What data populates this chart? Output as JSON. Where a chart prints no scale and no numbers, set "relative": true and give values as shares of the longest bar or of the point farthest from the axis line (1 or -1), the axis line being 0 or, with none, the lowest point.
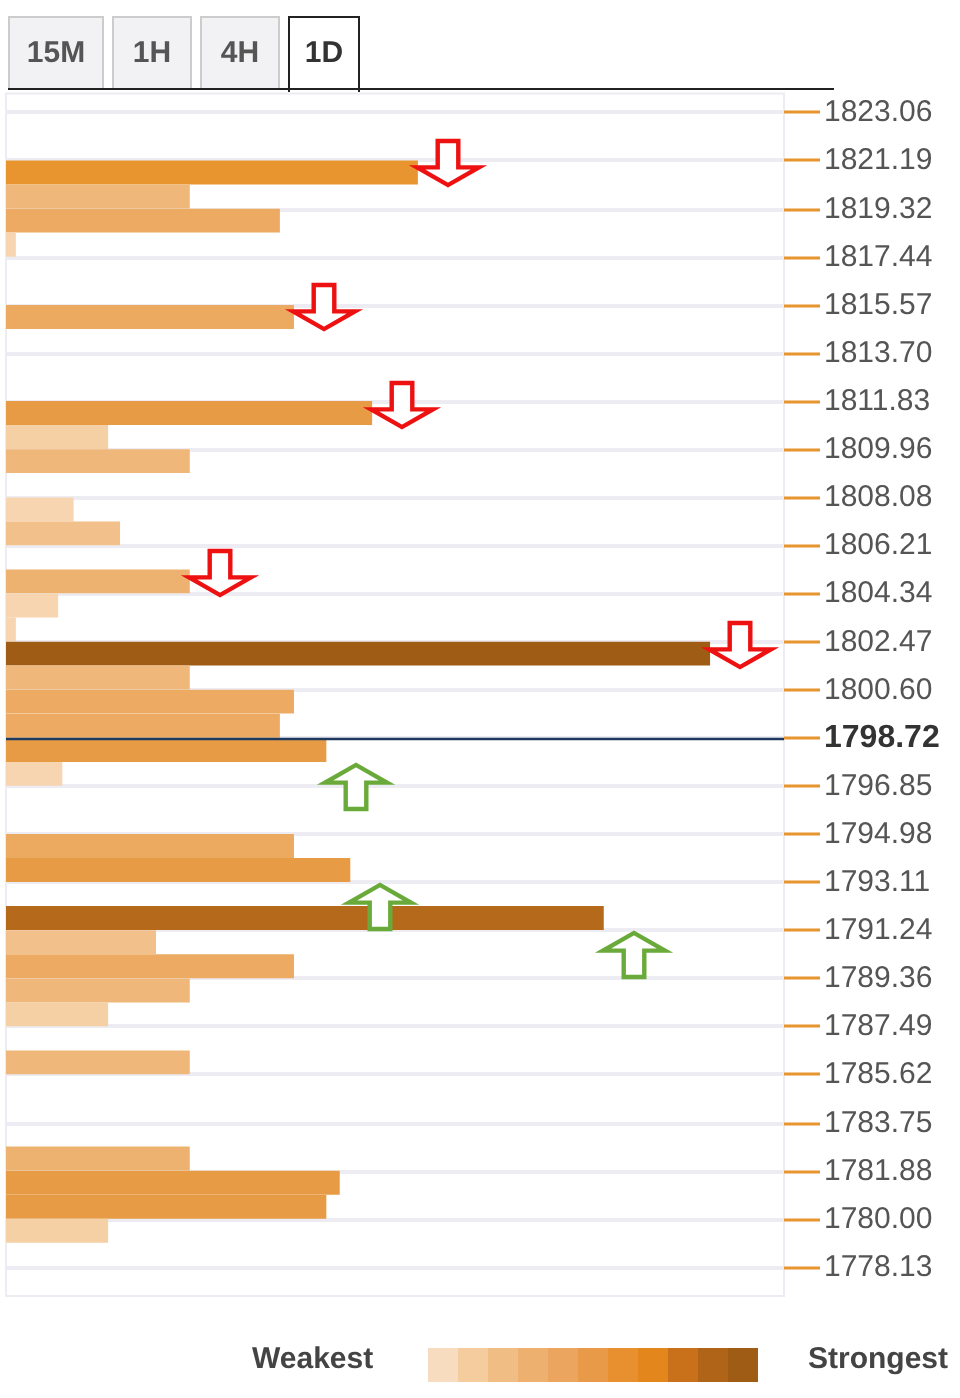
{
  "chart_data": {
    "type": "bar",
    "orientation": "horizontal",
    "relative": true,
    "x": [
      1820.72,
      1819.79,
      1818.85,
      1817.91,
      1815.1,
      1811.36,
      1810.43,
      1809.49,
      1807.61,
      1806.68,
      1804.81,
      1803.87,
      1802.94,
      1802.0,
      1801.07,
      1800.13,
      1799.19,
      1798.25,
      1797.32,
      1794.51,
      1793.58,
      1791.71,
      1790.77,
      1789.83,
      1788.89,
      1787.96,
      1786.09,
      1782.35,
      1781.41,
      1780.47,
      1779.54
    ],
    "values": [
      0.585,
      0.261,
      0.389,
      0.014,
      0.409,
      0.52,
      0.145,
      0.261,
      0.096,
      0.162,
      0.261,
      0.074,
      0.014,
      1,
      0.261,
      0.409,
      0.389,
      0.455,
      0.08,
      0.409,
      0.489,
      0.849,
      0.213,
      0.409,
      0.261,
      0.145,
      0.261,
      0.261,
      0.474,
      0.455,
      0.145
    ],
    "colors": [
      "#e8952f",
      "#efb779",
      "#edaa62",
      "#f6d5b0",
      "#ecaa60",
      "#e89b45",
      "#f5d0a5",
      "#efb779",
      "#f6d5b0",
      "#f2c08a",
      "#edb26f",
      "#f6d5b0",
      "#f6d5b0",
      "#9e5c14",
      "#efb779",
      "#edaa62",
      "#edaa62",
      "#e89b45",
      "#f6d5b0",
      "#ecaa60",
      "#e89b45",
      "#b5691a",
      "#f2c08a",
      "#edaa62",
      "#efb779",
      "#f5d0a5",
      "#efb779",
      "#edb26f",
      "#e89b45",
      "#e89b45",
      "#f5d0a5"
    ],
    "ylim": [
      1777.0,
      1823.8
    ],
    "yticks": [
      1823.06,
      1821.19,
      1819.32,
      1817.44,
      1815.57,
      {
        "value": 1813.7,
        "label": "1813.70"
      },
      1811.83,
      1809.96,
      1808.08,
      1806.21,
      1804.34,
      1802.47,
      {
        "value": 1800.6,
        "label": "1800.60"
      },
      1798.72,
      1796.85,
      1794.98,
      1793.11,
      1791.24,
      1789.36,
      1787.49,
      1785.62,
      1783.75,
      1781.88,
      {
        "value": 1780,
        "label": "1780.00"
      },
      1778.13
    ],
    "ref_lines": [
      {
        "axis": "y",
        "value": 1798.72,
        "color": "#1f3a5f"
      }
    ],
    "grid": "y",
    "annotations": [
      "15M",
      "1H",
      "4H",
      "1D",
      "Weakest",
      "Strongest"
    ]
  }
}
